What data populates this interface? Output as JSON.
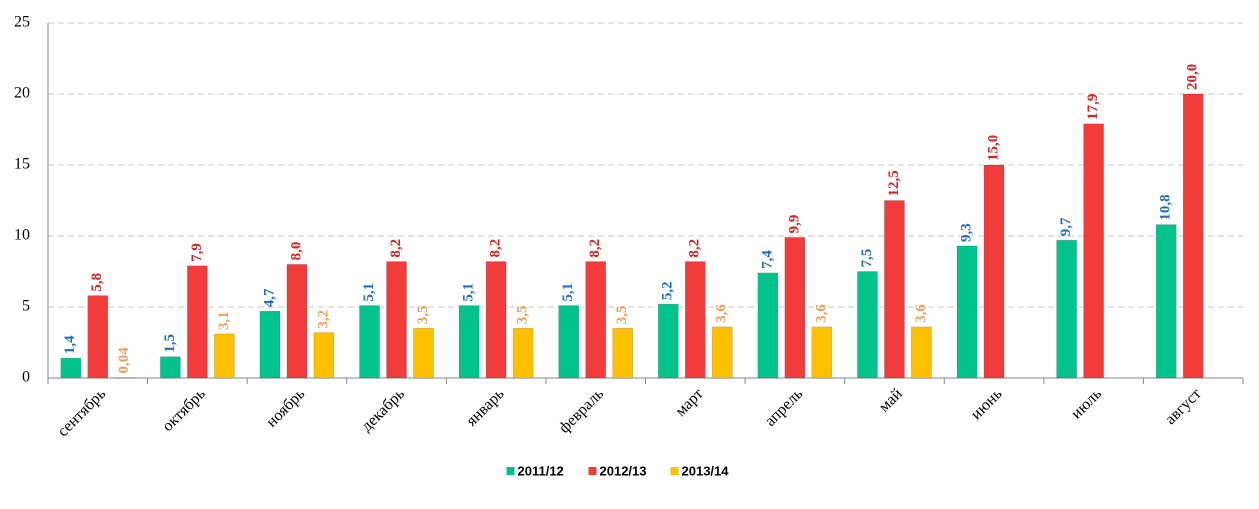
{
  "chart_data": {
    "type": "bar",
    "categories": [
      "сентябрь",
      "октябрь",
      "ноябрь",
      "декабрь",
      "январь",
      "февраль",
      "март",
      "апрель",
      "май",
      "июнь",
      "июль",
      "август"
    ],
    "series": [
      {
        "name": "2011/12",
        "color": "#00c48c",
        "label_color": "#1f6fc0",
        "values": [
          1.4,
          1.5,
          4.7,
          5.1,
          5.1,
          5.1,
          5.2,
          7.4,
          7.5,
          9.3,
          9.7,
          10.8
        ],
        "value_labels": [
          "1,4",
          "1,5",
          "4,7",
          "5,1",
          "5,1",
          "5,1",
          "5,2",
          "7,4",
          "7,5",
          "9,3",
          "9,7",
          "10,8"
        ]
      },
      {
        "name": "2012/13",
        "color": "#f23c3c",
        "label_color": "#e0201e",
        "values": [
          5.8,
          7.9,
          8.0,
          8.2,
          8.2,
          8.2,
          8.2,
          9.9,
          12.5,
          15.0,
          17.9,
          20.0
        ],
        "value_labels": [
          "5,8",
          "7,9",
          "8,0",
          "8,2",
          "8,2",
          "8,2",
          "8,2",
          "9,9",
          "12,5",
          "15,0",
          "17,9",
          "20,0"
        ]
      },
      {
        "name": "2013/14",
        "color": "#ffc000",
        "label_color": "#f0a05a",
        "values": [
          0.04,
          3.1,
          3.2,
          3.5,
          3.5,
          3.5,
          3.6,
          3.6,
          3.6,
          null,
          null,
          null
        ],
        "value_labels": [
          "0,04",
          "3,1",
          "3,2",
          "3,5",
          "3,5",
          "3,5",
          "3,6",
          "3,6",
          "3,6",
          null,
          null,
          null
        ]
      }
    ],
    "ylim": [
      0,
      25
    ],
    "yticks": [
      0,
      5,
      10,
      15,
      20,
      25
    ],
    "grid": true,
    "legend": "bottom"
  }
}
